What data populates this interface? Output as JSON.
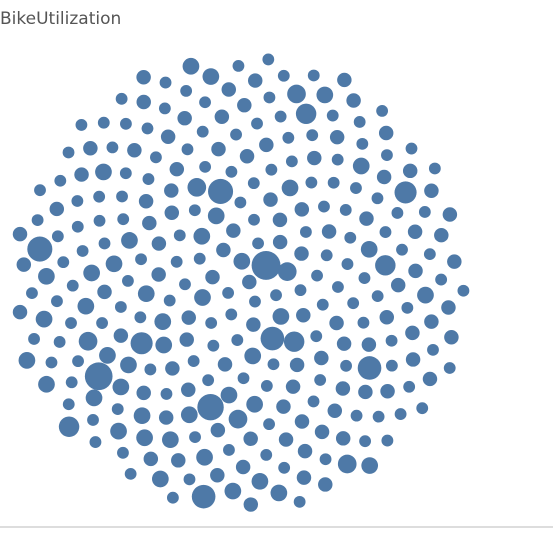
{
  "chart_data": {
    "type": "packed-bubble",
    "title": "BikeUtilization",
    "color": "#4e79a7",
    "values": [
      3,
      2,
      4,
      2,
      3,
      12,
      2,
      3,
      2,
      4,
      2,
      3,
      2,
      5,
      2,
      3,
      4,
      2,
      3,
      2,
      4,
      2,
      3,
      2,
      8,
      2,
      3,
      2,
      4,
      3,
      2,
      3,
      4,
      2,
      2,
      3,
      2,
      6,
      3,
      2,
      3,
      2,
      2,
      4,
      3,
      2,
      3,
      2,
      2,
      9,
      2,
      4,
      3,
      2,
      3,
      2,
      4,
      2,
      3,
      2,
      3,
      2,
      5,
      3,
      2,
      4,
      2,
      3,
      2,
      3,
      2,
      3,
      2,
      2,
      4,
      3,
      2,
      7,
      2,
      3,
      4,
      2,
      3,
      2,
      3,
      2,
      2,
      4,
      3,
      2,
      2,
      3,
      2,
      4,
      2,
      10,
      3,
      2,
      3,
      2,
      3,
      2,
      4,
      2,
      3,
      2,
      3,
      2,
      5,
      2,
      2,
      4,
      3,
      2,
      2,
      3,
      4,
      2,
      3,
      2,
      3,
      2,
      2,
      6,
      3,
      2,
      3,
      4,
      2,
      3,
      2,
      3,
      4,
      2,
      3,
      2,
      2,
      3,
      2,
      8,
      4,
      2,
      3,
      2,
      3,
      4,
      2,
      3,
      2,
      2,
      2,
      3,
      2,
      5,
      2,
      3,
      2,
      2,
      4,
      3,
      3,
      2,
      4,
      2,
      3,
      2,
      11,
      2,
      3,
      2,
      2,
      4,
      3,
      2,
      2,
      3,
      2,
      4,
      3,
      2,
      3,
      2,
      2,
      3,
      4,
      2,
      3,
      2,
      6,
      3,
      2,
      3,
      4,
      2,
      3,
      2,
      2,
      3,
      2,
      4,
      4,
      2,
      3,
      2,
      7,
      3,
      2,
      3,
      2,
      2,
      2,
      3,
      2,
      4,
      3,
      2,
      4,
      2,
      3,
      2,
      3,
      2,
      5,
      2,
      3,
      2,
      3,
      2,
      2,
      4,
      2,
      4,
      3,
      2,
      2,
      3,
      2,
      9,
      3,
      2,
      3,
      2,
      2,
      4,
      3,
      2,
      3,
      2,
      4,
      2,
      2,
      3,
      4,
      2,
      3,
      2,
      2,
      5,
      2,
      3,
      4,
      2,
      3,
      2,
      3,
      4,
      2,
      3,
      2,
      2,
      2,
      3,
      2,
      8,
      2,
      3,
      4,
      2,
      3,
      2,
      3,
      2,
      4,
      2,
      3,
      2,
      3,
      2,
      2,
      6,
      2,
      4,
      3,
      2,
      2,
      3,
      2,
      4,
      3,
      2
    ]
  }
}
